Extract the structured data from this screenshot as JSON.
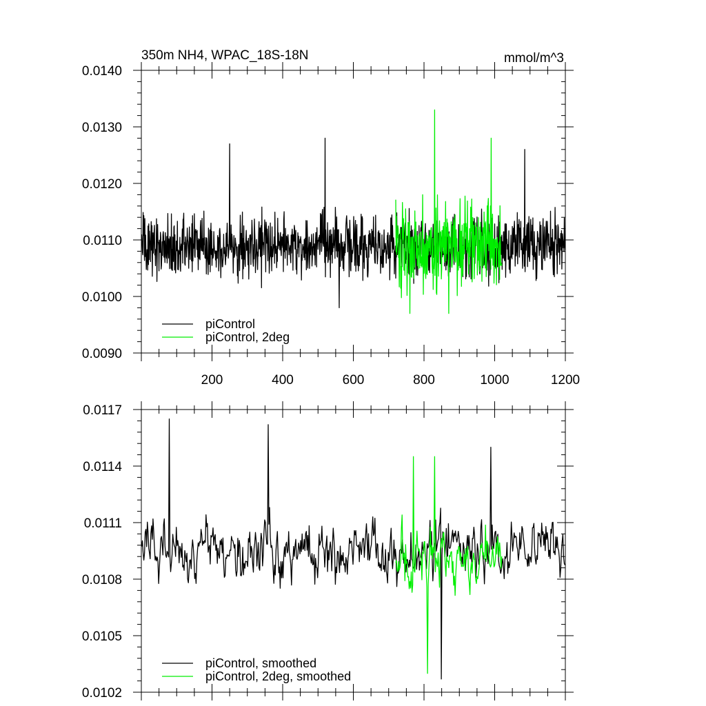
{
  "chart_data": [
    {
      "type": "line",
      "title": "350m NH4, WPAC_18S-18N",
      "units": "mmol/m^3",
      "xlim": [
        0,
        1200
      ],
      "ylim": [
        0.009,
        0.014
      ],
      "x_tick_labels": [
        "200",
        "400",
        "600",
        "800",
        "1000",
        "1200"
      ],
      "y_tick_labels": [
        "0.0090",
        "0.0100",
        "0.0110",
        "0.0120",
        "0.0130",
        "0.0140"
      ],
      "legend_position": "bottom-left",
      "series": [
        {
          "name": "piControl",
          "color": "#000000",
          "x_start": 1,
          "x_end": 1200,
          "mean": 0.0109,
          "noise_amplitude": 0.0008,
          "min": 0.0098,
          "max": 0.0128,
          "peaks": [
            {
              "x": 520,
              "y": 0.0128
            },
            {
              "x": 250,
              "y": 0.0127
            },
            {
              "x": 1085,
              "y": 0.0126
            },
            {
              "x": 560,
              "y": 0.0098
            }
          ]
        },
        {
          "name": "piControl, 2deg",
          "color": "#00ee00",
          "x_start": 720,
          "x_end": 1020,
          "mean": 0.0109,
          "noise_amplitude": 0.0011,
          "min": 0.0097,
          "max": 0.0133,
          "peaks": [
            {
              "x": 830,
              "y": 0.0133
            },
            {
              "x": 990,
              "y": 0.0128
            },
            {
              "x": 760,
              "y": 0.0097
            },
            {
              "x": 870,
              "y": 0.0097
            }
          ]
        }
      ]
    },
    {
      "type": "line",
      "xlim": [
        0,
        1200
      ],
      "ylim": [
        0.0102,
        0.0117
      ],
      "y_tick_labels": [
        "0.0102",
        "0.0105",
        "0.0108",
        "0.0111",
        "0.0114",
        "0.0117"
      ],
      "legend_position": "bottom-left",
      "series": [
        {
          "name": "piControl, smoothed",
          "color": "#000000",
          "x_start": 1,
          "x_end": 1200,
          "mean": 0.01095,
          "noise_amplitude": 0.00045,
          "min": 0.01027,
          "max": 0.01165,
          "peaks": [
            {
              "x": 80,
              "y": 0.01165
            },
            {
              "x": 360,
              "y": 0.01162
            },
            {
              "x": 990,
              "y": 0.0115
            },
            {
              "x": 850,
              "y": 0.01027
            }
          ]
        },
        {
          "name": "piControl, 2deg, smoothed",
          "color": "#00ee00",
          "x_start": 720,
          "x_end": 1020,
          "mean": 0.0109,
          "noise_amplitude": 0.00045,
          "min": 0.0103,
          "max": 0.01145,
          "peaks": [
            {
              "x": 770,
              "y": 0.01145
            },
            {
              "x": 830,
              "y": 0.01145
            },
            {
              "x": 810,
              "y": 0.0103
            }
          ]
        }
      ]
    }
  ]
}
